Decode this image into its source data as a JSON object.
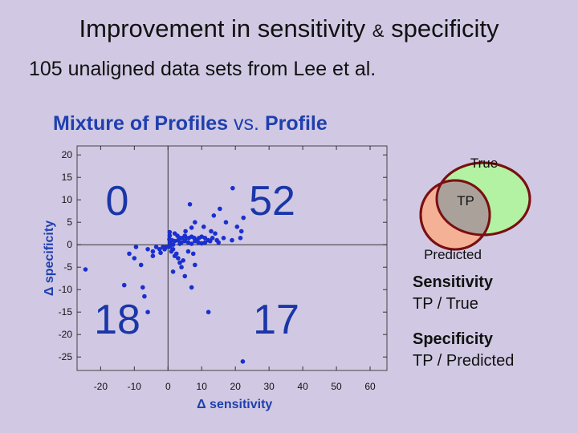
{
  "header": {
    "title_part1": "Improvement in sensitivity",
    "title_amp": "&",
    "title_part2": "specificity",
    "subtitle": "105 unaligned data sets from Lee et al."
  },
  "chart_heading": {
    "part1": "Mixture of Profiles",
    "vs": "vs.",
    "part2": "Profile"
  },
  "chart_data": {
    "type": "scatter",
    "xlabel": "Δ sensitivity",
    "ylabel": "Δ specificity",
    "xlim": [
      -27,
      65
    ],
    "ylim": [
      -28,
      22
    ],
    "xticks": [
      -20,
      -10,
      0,
      10,
      20,
      30,
      40,
      50,
      60
    ],
    "yticks": [
      20,
      15,
      10,
      5,
      0,
      -5,
      -10,
      -15,
      -20,
      -25
    ],
    "grid": false,
    "point_color": "#1a2fd0",
    "quadrant_counts": [
      {
        "quadrant": "top-left",
        "count": "0"
      },
      {
        "quadrant": "top-right",
        "count": "52"
      },
      {
        "quadrant": "bottom-left",
        "count": "18"
      },
      {
        "quadrant": "bottom-right",
        "count": "17"
      }
    ],
    "points": [
      [
        19.2,
        12.6
      ],
      [
        6.5,
        9.0
      ],
      [
        15.4,
        8.0
      ],
      [
        13.6,
        6.5
      ],
      [
        22.4,
        6.0
      ],
      [
        17.2,
        5.0
      ],
      [
        8.0,
        5.0
      ],
      [
        20.5,
        4.0
      ],
      [
        10.6,
        4.0
      ],
      [
        21.8,
        3.0
      ],
      [
        12.8,
        3.0
      ],
      [
        7.0,
        3.8
      ],
      [
        5.2,
        3.0
      ],
      [
        14.0,
        2.5
      ],
      [
        0.5,
        2.0
      ],
      [
        2.0,
        2.5
      ],
      [
        2.8,
        2.0
      ],
      [
        3.5,
        1.5
      ],
      [
        4.2,
        1.5
      ],
      [
        5.0,
        2.0
      ],
      [
        5.5,
        1.5
      ],
      [
        6.2,
        1.5
      ],
      [
        7.0,
        1.8
      ],
      [
        7.8,
        1.5
      ],
      [
        8.5,
        1.0
      ],
      [
        9.2,
        1.5
      ],
      [
        10.0,
        1.8
      ],
      [
        11.0,
        1.5
      ],
      [
        12.0,
        1.0
      ],
      [
        13.2,
        1.5
      ],
      [
        14.5,
        1.0
      ],
      [
        16.5,
        1.5
      ],
      [
        19.0,
        1.0
      ],
      [
        21.5,
        1.5
      ],
      [
        0.4,
        1.2
      ],
      [
        1.2,
        1.0
      ],
      [
        2.0,
        0.8
      ],
      [
        3.0,
        1.0
      ],
      [
        4.0,
        0.5
      ],
      [
        5.0,
        0.8
      ],
      [
        6.0,
        0.5
      ],
      [
        7.0,
        0.2
      ],
      [
        8.0,
        0.8
      ],
      [
        9.0,
        0.5
      ],
      [
        10.0,
        0.3
      ],
      [
        11.0,
        0.5
      ],
      [
        12.5,
        0.8
      ],
      [
        15.0,
        0.5
      ],
      [
        0.6,
        0.4
      ],
      [
        1.5,
        0.0
      ],
      [
        3.5,
        0.2
      ],
      [
        0.5,
        2.8
      ],
      [
        -0.5,
        -0.5
      ],
      [
        -1.0,
        -1.0
      ],
      [
        -1.5,
        -0.5
      ],
      [
        -2.5,
        -1.0
      ],
      [
        -3.5,
        -0.5
      ],
      [
        -4.5,
        -1.5
      ],
      [
        -6.0,
        -1.0
      ],
      [
        -4.5,
        -2.5
      ],
      [
        -9.5,
        -0.5
      ],
      [
        -10.0,
        -3.0
      ],
      [
        -11.5,
        -2.0
      ],
      [
        -24.5,
        -5.5
      ],
      [
        -13.0,
        -9.0
      ],
      [
        -7.5,
        -9.5
      ],
      [
        -7.0,
        -11.5
      ],
      [
        -6.0,
        -15.0
      ],
      [
        -8.0,
        -4.5
      ],
      [
        -2.2,
        -1.8
      ],
      [
        0.5,
        -0.5
      ],
      [
        1.0,
        -1.5
      ],
      [
        1.5,
        -1.0
      ],
      [
        2.0,
        -2.5
      ],
      [
        2.5,
        -2.0
      ],
      [
        3.0,
        -3.0
      ],
      [
        3.5,
        -4.0
      ],
      [
        4.0,
        -5.0
      ],
      [
        4.5,
        -3.5
      ],
      [
        5.0,
        -7.0
      ],
      [
        7.0,
        -9.5
      ],
      [
        7.5,
        -2.0
      ],
      [
        12.0,
        -15.0
      ],
      [
        1.5,
        -6.0
      ],
      [
        8.0,
        -4.5
      ],
      [
        22.2,
        -26.0
      ],
      [
        6.0,
        -1.5
      ]
    ]
  },
  "venn": {
    "true_label": "True",
    "tp_label": "TP",
    "predicted_label": "Predicted",
    "colors": {
      "true_fill": "#b2f2a2",
      "predicted_fill": "#f4b196",
      "tp_fill": "#aaa29a",
      "outline": "#7a0f12"
    }
  },
  "definitions": {
    "sensitivity_label": "Sensitivity",
    "sensitivity_formula": "TP / True",
    "specificity_label": "Specificity",
    "specificity_formula": "TP / Predicted"
  }
}
